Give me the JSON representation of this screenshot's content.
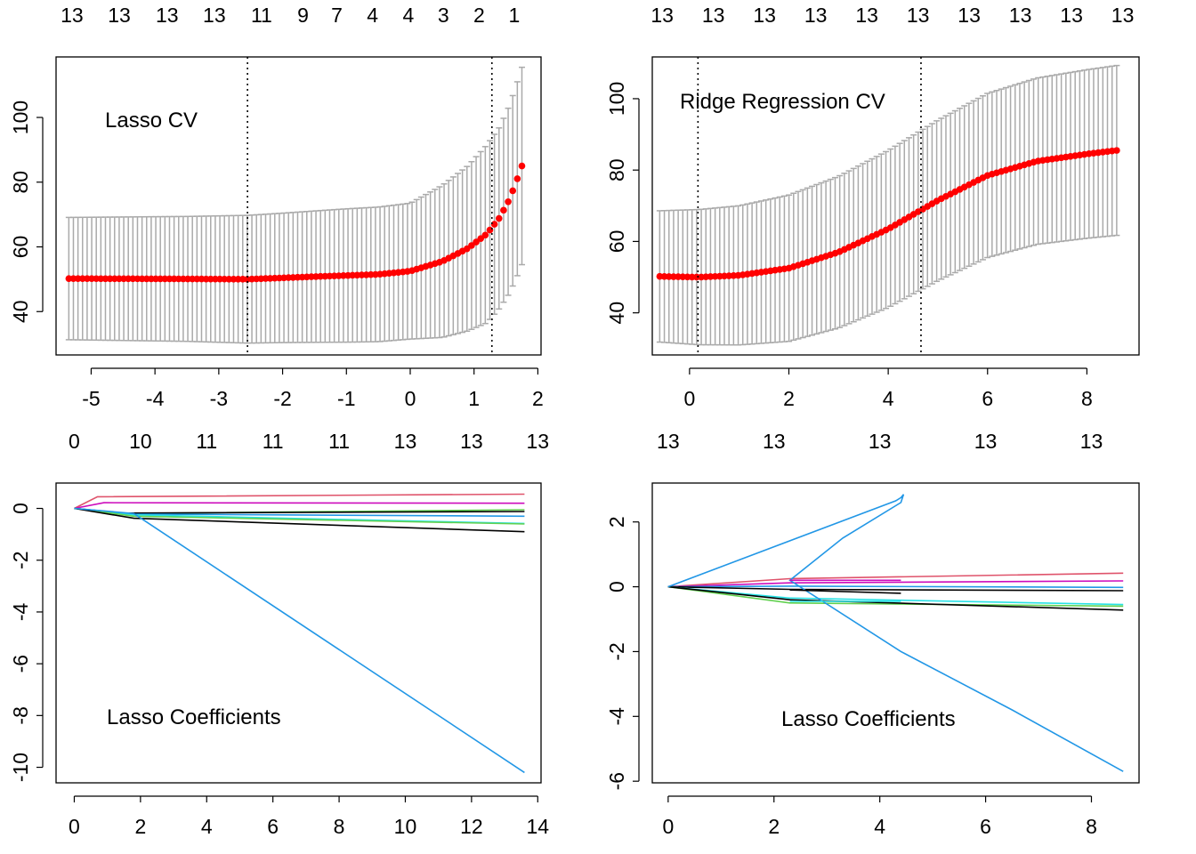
{
  "chart_data": [
    {
      "type": "scatter",
      "annotation": "Lasso CV",
      "xticks": [
        -5,
        -4,
        -3,
        -2,
        -1,
        0,
        1,
        2
      ],
      "yticks": [
        40,
        60,
        80,
        100
      ],
      "xlim": [
        -5.55,
        2.05
      ],
      "ylim": [
        26.6,
        118.7
      ],
      "top_axis": {
        "labels": [
          "13",
          "13",
          "13",
          "13",
          "11",
          "9",
          "7",
          "4",
          "4",
          "3",
          "2",
          "1"
        ],
        "positions": [
          -5.3,
          -4.56,
          -3.81,
          -3.07,
          -2.33,
          -1.68,
          -1.15,
          -0.59,
          -0.03,
          0.52,
          1.08,
          1.63
        ]
      },
      "vlines": [
        -2.55,
        1.28
      ],
      "curve": {
        "x_range": [
          -5.35,
          1.75
        ],
        "points": [
          [
            -5.35,
            50.2
          ],
          [
            -3.5,
            50.1
          ],
          [
            -2.55,
            50.0
          ],
          [
            -1.5,
            50.8
          ],
          [
            -0.5,
            51.5
          ],
          [
            0.0,
            52.5
          ],
          [
            0.5,
            55.5
          ],
          [
            0.9,
            59.5
          ],
          [
            1.2,
            64.0
          ],
          [
            1.4,
            69.0
          ],
          [
            1.55,
            74.5
          ],
          [
            1.65,
            79.5
          ],
          [
            1.75,
            85.0
          ]
        ]
      },
      "ci_half_width": {
        "points": [
          [
            -5.35,
            18.9
          ],
          [
            -3.5,
            19.3
          ],
          [
            -2.0,
            20.0
          ],
          [
            -1.0,
            20.6
          ],
          [
            0.0,
            21.0
          ],
          [
            0.5,
            23.5
          ],
          [
            0.9,
            25.5
          ],
          [
            1.2,
            27.5
          ],
          [
            1.4,
            28.0
          ],
          [
            1.55,
            29.0
          ],
          [
            1.75,
            30.5
          ]
        ]
      },
      "point_color": "#ff0000",
      "errorbar_color": "#aaaaaa"
    },
    {
      "type": "scatter",
      "annotation": "Ridge Regression CV",
      "xticks": [
        0,
        2,
        4,
        6,
        8
      ],
      "yticks": [
        40,
        60,
        80,
        100
      ],
      "xlim": [
        -0.75,
        9.05
      ],
      "ylim": [
        28.2,
        111.7
      ],
      "top_axis": {
        "labels": [
          "13",
          "13",
          "13",
          "13",
          "13",
          "13",
          "13",
          "13",
          "13",
          "13"
        ],
        "positions": [
          -0.55,
          0.48,
          1.51,
          2.54,
          3.57,
          4.6,
          5.63,
          6.66,
          7.69,
          8.72
        ]
      },
      "vlines": [
        0.17,
        4.66
      ],
      "curve": {
        "x_range": [
          -0.6,
          8.6
        ],
        "points": [
          [
            -0.6,
            50.2
          ],
          [
            0.2,
            50.0
          ],
          [
            1.0,
            50.5
          ],
          [
            2.0,
            52.5
          ],
          [
            3.0,
            57.0
          ],
          [
            4.0,
            63.5
          ],
          [
            5.0,
            71.5
          ],
          [
            6.0,
            78.5
          ],
          [
            7.0,
            82.5
          ],
          [
            8.0,
            84.5
          ],
          [
            8.6,
            85.5
          ]
        ]
      },
      "ci_half_width": {
        "points": [
          [
            -0.6,
            18.4
          ],
          [
            1.0,
            19.5
          ],
          [
            2.0,
            20.5
          ],
          [
            4.0,
            22.0
          ],
          [
            6.0,
            23.0
          ],
          [
            8.6,
            23.8
          ]
        ]
      },
      "point_color": "#ff0000",
      "errorbar_color": "#aaaaaa"
    },
    {
      "type": "line",
      "annotation": "Lasso Coefficients",
      "xticks": [
        0,
        2,
        4,
        6,
        8,
        10,
        12,
        14
      ],
      "yticks": [
        0,
        -2,
        -4,
        -6,
        -8,
        -10
      ],
      "xlim": [
        -0.55,
        14.1
      ],
      "ylim": [
        -10.6,
        0.98
      ],
      "top_axis": {
        "labels": [
          "0",
          "10",
          "11",
          "11",
          "11",
          "13",
          "13",
          "13"
        ],
        "positions": [
          0,
          2,
          4,
          6,
          8,
          10,
          12,
          14
        ]
      },
      "series": [
        {
          "color": "#df536b",
          "values": [
            [
              0,
              0
            ],
            [
              0.7,
              0.45
            ],
            [
              13.6,
              0.55
            ]
          ]
        },
        {
          "color": "#cd0bbc",
          "values": [
            [
              0,
              0
            ],
            [
              0.9,
              0.22
            ],
            [
              13.6,
              0.2
            ]
          ]
        },
        {
          "color": "#61d04f",
          "values": [
            [
              0,
              0
            ],
            [
              1.5,
              -0.2
            ],
            [
              13.6,
              -0.05
            ]
          ]
        },
        {
          "color": "#000000",
          "values": [
            [
              0,
              0
            ],
            [
              1.5,
              -0.18
            ],
            [
              13.6,
              -0.12
            ]
          ]
        },
        {
          "color": "#2297e6",
          "values": [
            [
              0,
              0
            ],
            [
              1.8,
              -0.22
            ],
            [
              13.6,
              -0.3
            ]
          ]
        },
        {
          "color": "#28e2e5",
          "values": [
            [
              0,
              0
            ],
            [
              1.8,
              -0.25
            ],
            [
              13.6,
              -0.58
            ]
          ]
        },
        {
          "color": "#61d04f",
          "values": [
            [
              0,
              0
            ],
            [
              1.8,
              -0.3
            ],
            [
              13.6,
              -0.6
            ]
          ]
        },
        {
          "color": "#000000",
          "values": [
            [
              0,
              0
            ],
            [
              1.8,
              -0.38
            ],
            [
              13.6,
              -0.9
            ]
          ]
        },
        {
          "color": "#2297e6",
          "values": [
            [
              0,
              0
            ],
            [
              1.8,
              -0.2
            ],
            [
              13.6,
              -10.2
            ]
          ]
        }
      ]
    },
    {
      "type": "line",
      "annotation": "Lasso Coefficients",
      "xticks": [
        0,
        2,
        4,
        6,
        8
      ],
      "yticks": [
        2,
        0,
        -2,
        -4,
        -6
      ],
      "xlim": [
        -0.3,
        8.9
      ],
      "ylim": [
        -6.05,
        3.2
      ],
      "top_axis": {
        "labels": [
          "13",
          "13",
          "13",
          "13",
          "13"
        ],
        "positions": [
          0,
          2,
          4,
          6,
          8
        ]
      },
      "series": [
        {
          "color": "#df536b",
          "values": [
            [
              0,
              0
            ],
            [
              2.3,
              0.25
            ],
            [
              8.6,
              0.42
            ]
          ]
        },
        {
          "color": "#cd0bbc",
          "values": [
            [
              0,
              0
            ],
            [
              2.3,
              0.12
            ],
            [
              8.6,
              0.18
            ]
          ]
        },
        {
          "color": "#2297e6",
          "values": [
            [
              0,
              0
            ],
            [
              2.3,
              0.02
            ],
            [
              8.6,
              -0.02
            ]
          ]
        },
        {
          "color": "#000000",
          "values": [
            [
              0,
              0
            ],
            [
              2.3,
              -0.08
            ],
            [
              8.6,
              -0.12
            ]
          ]
        },
        {
          "color": "#28e2e5",
          "values": [
            [
              0,
              0
            ],
            [
              2.3,
              -0.35
            ],
            [
              8.6,
              -0.55
            ]
          ]
        },
        {
          "color": "#61d04f",
          "values": [
            [
              0,
              0
            ],
            [
              2.3,
              -0.5
            ],
            [
              8.6,
              -0.6
            ]
          ]
        },
        {
          "color": "#000000",
          "values": [
            [
              0,
              0
            ],
            [
              2.3,
              -0.4
            ],
            [
              8.6,
              -0.72
            ]
          ]
        },
        {
          "color": "#2297e6",
          "values": [
            [
              0,
              0
            ],
            [
              4.3,
              2.65
            ],
            [
              4.4,
              2.75
            ],
            [
              4.45,
              2.85
            ],
            [
              4.4,
              2.6
            ],
            [
              3.3,
              1.5
            ],
            [
              2.3,
              0.2
            ],
            [
              4.4,
              -2.0
            ],
            [
              6.5,
              -3.8
            ],
            [
              8.6,
              -5.7
            ]
          ]
        },
        {
          "color": "#cd0bbc",
          "values": [
            [
              2.3,
              0.2
            ],
            [
              4.4,
              0.2
            ]
          ]
        },
        {
          "color": "#000000",
          "values": [
            [
              2.3,
              -0.1
            ],
            [
              4.4,
              -0.2
            ]
          ]
        },
        {
          "color": "#28e2e5",
          "values": [
            [
              2.3,
              -0.45
            ],
            [
              4.4,
              -0.45
            ]
          ]
        }
      ]
    }
  ]
}
